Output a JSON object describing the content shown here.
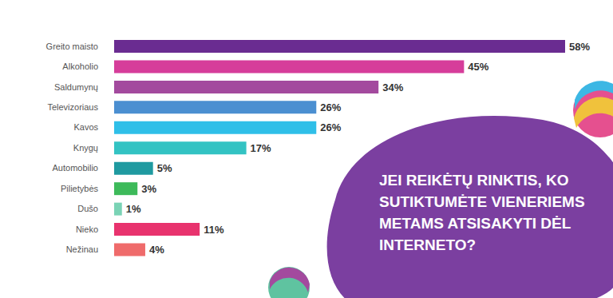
{
  "chart_data": {
    "type": "bar",
    "orientation": "horizontal",
    "title": "JEI REIKĖTŲ RINKTIS, KO SUTIKTUMĖTE VIENERIEMS METAMS ATSISAKYTI DĖL INTERNETO?",
    "categories": [
      "Greito maisto",
      "Alkoholio",
      "Saldumynų",
      "Televizoriaus",
      "Kavos",
      "Knygų",
      "Automobilio",
      "Pilietybės",
      "Dušo",
      "Nieko",
      "Nežinau"
    ],
    "values": [
      58,
      45,
      34,
      26,
      26,
      17,
      5,
      3,
      1,
      11,
      4
    ],
    "value_labels": [
      "58%",
      "45%",
      "34%",
      "26%",
      "26%",
      "17%",
      "5%",
      "3%",
      "1%",
      "11%",
      "4%"
    ],
    "colors": [
      "#6a2c91",
      "#d63d9a",
      "#a34a9e",
      "#4b8fd1",
      "#2fbfe8",
      "#33c3c3",
      "#1f9aa0",
      "#3dba5a",
      "#7ad3b5",
      "#e8336e",
      "#ef6b6b"
    ],
    "xlim": [
      0,
      58
    ],
    "data_labels": true,
    "tick_labels": "y",
    "grid": false
  }
}
